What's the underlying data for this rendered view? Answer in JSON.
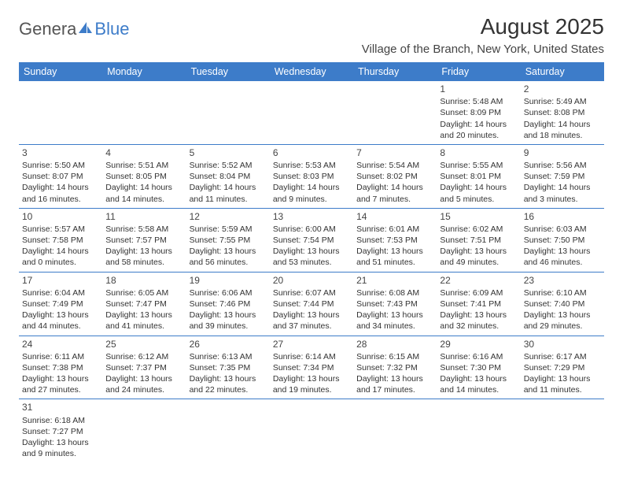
{
  "logo": {
    "text1": "Genera",
    "text2": "Blue"
  },
  "title": "August 2025",
  "location": "Village of the Branch, New York, United States",
  "colors": {
    "header_bg": "#3d7cc9",
    "header_text": "#ffffff",
    "border": "#3d7cc9",
    "text": "#333333",
    "logo_gray": "#555555",
    "logo_blue": "#3d7cc9"
  },
  "day_names": [
    "Sunday",
    "Monday",
    "Tuesday",
    "Wednesday",
    "Thursday",
    "Friday",
    "Saturday"
  ],
  "weeks": [
    [
      null,
      null,
      null,
      null,
      null,
      {
        "n": "1",
        "sr": "5:48 AM",
        "ss": "8:09 PM",
        "dl": "14 hours and 20 minutes."
      },
      {
        "n": "2",
        "sr": "5:49 AM",
        "ss": "8:08 PM",
        "dl": "14 hours and 18 minutes."
      }
    ],
    [
      {
        "n": "3",
        "sr": "5:50 AM",
        "ss": "8:07 PM",
        "dl": "14 hours and 16 minutes."
      },
      {
        "n": "4",
        "sr": "5:51 AM",
        "ss": "8:05 PM",
        "dl": "14 hours and 14 minutes."
      },
      {
        "n": "5",
        "sr": "5:52 AM",
        "ss": "8:04 PM",
        "dl": "14 hours and 11 minutes."
      },
      {
        "n": "6",
        "sr": "5:53 AM",
        "ss": "8:03 PM",
        "dl": "14 hours and 9 minutes."
      },
      {
        "n": "7",
        "sr": "5:54 AM",
        "ss": "8:02 PM",
        "dl": "14 hours and 7 minutes."
      },
      {
        "n": "8",
        "sr": "5:55 AM",
        "ss": "8:01 PM",
        "dl": "14 hours and 5 minutes."
      },
      {
        "n": "9",
        "sr": "5:56 AM",
        "ss": "7:59 PM",
        "dl": "14 hours and 3 minutes."
      }
    ],
    [
      {
        "n": "10",
        "sr": "5:57 AM",
        "ss": "7:58 PM",
        "dl": "14 hours and 0 minutes."
      },
      {
        "n": "11",
        "sr": "5:58 AM",
        "ss": "7:57 PM",
        "dl": "13 hours and 58 minutes."
      },
      {
        "n": "12",
        "sr": "5:59 AM",
        "ss": "7:55 PM",
        "dl": "13 hours and 56 minutes."
      },
      {
        "n": "13",
        "sr": "6:00 AM",
        "ss": "7:54 PM",
        "dl": "13 hours and 53 minutes."
      },
      {
        "n": "14",
        "sr": "6:01 AM",
        "ss": "7:53 PM",
        "dl": "13 hours and 51 minutes."
      },
      {
        "n": "15",
        "sr": "6:02 AM",
        "ss": "7:51 PM",
        "dl": "13 hours and 49 minutes."
      },
      {
        "n": "16",
        "sr": "6:03 AM",
        "ss": "7:50 PM",
        "dl": "13 hours and 46 minutes."
      }
    ],
    [
      {
        "n": "17",
        "sr": "6:04 AM",
        "ss": "7:49 PM",
        "dl": "13 hours and 44 minutes."
      },
      {
        "n": "18",
        "sr": "6:05 AM",
        "ss": "7:47 PM",
        "dl": "13 hours and 41 minutes."
      },
      {
        "n": "19",
        "sr": "6:06 AM",
        "ss": "7:46 PM",
        "dl": "13 hours and 39 minutes."
      },
      {
        "n": "20",
        "sr": "6:07 AM",
        "ss": "7:44 PM",
        "dl": "13 hours and 37 minutes."
      },
      {
        "n": "21",
        "sr": "6:08 AM",
        "ss": "7:43 PM",
        "dl": "13 hours and 34 minutes."
      },
      {
        "n": "22",
        "sr": "6:09 AM",
        "ss": "7:41 PM",
        "dl": "13 hours and 32 minutes."
      },
      {
        "n": "23",
        "sr": "6:10 AM",
        "ss": "7:40 PM",
        "dl": "13 hours and 29 minutes."
      }
    ],
    [
      {
        "n": "24",
        "sr": "6:11 AM",
        "ss": "7:38 PM",
        "dl": "13 hours and 27 minutes."
      },
      {
        "n": "25",
        "sr": "6:12 AM",
        "ss": "7:37 PM",
        "dl": "13 hours and 24 minutes."
      },
      {
        "n": "26",
        "sr": "6:13 AM",
        "ss": "7:35 PM",
        "dl": "13 hours and 22 minutes."
      },
      {
        "n": "27",
        "sr": "6:14 AM",
        "ss": "7:34 PM",
        "dl": "13 hours and 19 minutes."
      },
      {
        "n": "28",
        "sr": "6:15 AM",
        "ss": "7:32 PM",
        "dl": "13 hours and 17 minutes."
      },
      {
        "n": "29",
        "sr": "6:16 AM",
        "ss": "7:30 PM",
        "dl": "13 hours and 14 minutes."
      },
      {
        "n": "30",
        "sr": "6:17 AM",
        "ss": "7:29 PM",
        "dl": "13 hours and 11 minutes."
      }
    ],
    [
      {
        "n": "31",
        "sr": "6:18 AM",
        "ss": "7:27 PM",
        "dl": "13 hours and 9 minutes."
      },
      null,
      null,
      null,
      null,
      null,
      null
    ]
  ],
  "labels": {
    "sunrise": "Sunrise:",
    "sunset": "Sunset:",
    "daylight": "Daylight:"
  }
}
